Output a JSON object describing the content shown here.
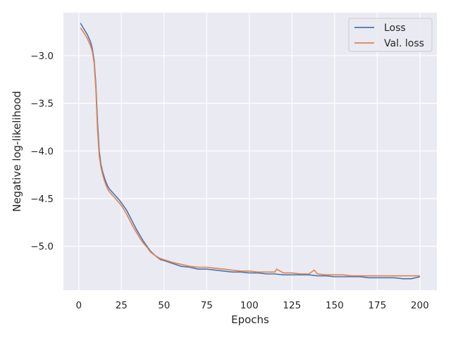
{
  "chart_data": {
    "type": "line",
    "title": "",
    "xlabel": "Epochs",
    "ylabel": "Negative log-likelihood",
    "xlim": [
      -9,
      210
    ],
    "ylim": [
      -5.46,
      -2.55
    ],
    "xticks": [
      0,
      25,
      50,
      75,
      100,
      125,
      150,
      175,
      200
    ],
    "yticks": [
      -3.0,
      -3.5,
      -4.0,
      -4.5,
      -5.0
    ],
    "ytick_labels": [
      "−3.0",
      "−3.5",
      "−4.0",
      "−4.5",
      "−5.0"
    ],
    "grid": true,
    "legend": "top-right",
    "background": "#eaeaf2",
    "grid_color": "#ffffff",
    "series": [
      {
        "name": "Loss",
        "color": "#4c72b0",
        "x": [
          1,
          3,
          5,
          7,
          8,
          9,
          10,
          11,
          12,
          13,
          14,
          15,
          16,
          17,
          18,
          19,
          20,
          22,
          24,
          26,
          28,
          30,
          32,
          34,
          36,
          38,
          40,
          42,
          45,
          48,
          50,
          55,
          60,
          65,
          70,
          75,
          80,
          85,
          90,
          95,
          100,
          105,
          110,
          115,
          120,
          125,
          130,
          135,
          140,
          145,
          150,
          155,
          160,
          165,
          170,
          175,
          180,
          185,
          190,
          195,
          200
        ],
        "y": [
          -2.66,
          -2.72,
          -2.78,
          -2.86,
          -2.93,
          -3.05,
          -3.3,
          -3.7,
          -4.0,
          -4.14,
          -4.22,
          -4.28,
          -4.33,
          -4.37,
          -4.4,
          -4.42,
          -4.44,
          -4.48,
          -4.52,
          -4.57,
          -4.62,
          -4.69,
          -4.76,
          -4.83,
          -4.89,
          -4.95,
          -5.0,
          -5.05,
          -5.1,
          -5.14,
          -5.15,
          -5.18,
          -5.21,
          -5.22,
          -5.24,
          -5.24,
          -5.25,
          -5.26,
          -5.27,
          -5.27,
          -5.28,
          -5.28,
          -5.29,
          -5.29,
          -5.3,
          -5.3,
          -5.3,
          -5.3,
          -5.31,
          -5.31,
          -5.32,
          -5.32,
          -5.32,
          -5.32,
          -5.33,
          -5.33,
          -5.33,
          -5.33,
          -5.34,
          -5.34,
          -5.32
        ]
      },
      {
        "name": "Val. loss",
        "color": "#dd8452",
        "x": [
          1,
          3,
          5,
          7,
          8,
          9,
          10,
          11,
          12,
          13,
          14,
          15,
          16,
          17,
          18,
          19,
          20,
          22,
          24,
          26,
          28,
          30,
          32,
          34,
          36,
          38,
          40,
          42,
          45,
          48,
          50,
          55,
          60,
          65,
          70,
          75,
          80,
          85,
          90,
          95,
          100,
          105,
          110,
          115,
          116,
          120,
          125,
          130,
          135,
          138,
          140,
          145,
          150,
          155,
          160,
          165,
          170,
          175,
          180,
          185,
          190,
          195,
          200
        ],
        "y": [
          -2.71,
          -2.76,
          -2.82,
          -2.9,
          -2.96,
          -3.08,
          -3.35,
          -3.78,
          -4.05,
          -4.17,
          -4.25,
          -4.31,
          -4.36,
          -4.4,
          -4.43,
          -4.45,
          -4.47,
          -4.51,
          -4.55,
          -4.6,
          -4.66,
          -4.73,
          -4.8,
          -4.86,
          -4.92,
          -4.97,
          -5.01,
          -5.06,
          -5.1,
          -5.13,
          -5.14,
          -5.17,
          -5.19,
          -5.21,
          -5.22,
          -5.22,
          -5.23,
          -5.24,
          -5.25,
          -5.26,
          -5.26,
          -5.27,
          -5.27,
          -5.27,
          -5.24,
          -5.28,
          -5.28,
          -5.29,
          -5.29,
          -5.25,
          -5.29,
          -5.3,
          -5.3,
          -5.3,
          -5.31,
          -5.31,
          -5.31,
          -5.31,
          -5.31,
          -5.31,
          -5.31,
          -5.31,
          -5.31
        ]
      }
    ]
  }
}
